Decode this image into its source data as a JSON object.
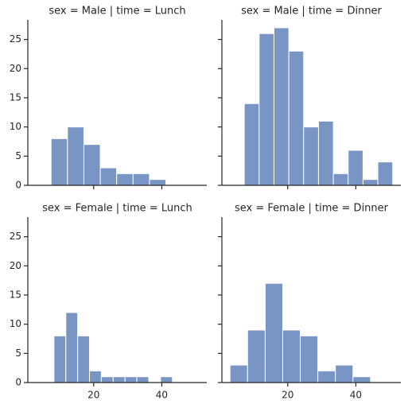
{
  "chart_data": [
    {
      "type": "histogram",
      "title": "sex = Male | time = Lunch",
      "color": "#4c72b0",
      "bins": [
        7.51,
        12.32,
        17.13,
        21.94,
        26.75,
        31.57,
        36.38,
        41.19
      ],
      "values": [
        8,
        10,
        7,
        3,
        2,
        2,
        1
      ],
      "xlim": [
        0.68,
        53.2
      ],
      "ylim": [
        0,
        28.35
      ],
      "xticks": [
        20,
        40
      ],
      "yticks": [
        0,
        5,
        10,
        15,
        20,
        25
      ]
    },
    {
      "type": "histogram",
      "title": "sex = Male | time = Dinner",
      "color": "#4c72b0",
      "bins": [
        7.25,
        11.61,
        15.96,
        20.32,
        24.67,
        29.03,
        33.39,
        37.74,
        42.1,
        46.45,
        50.81
      ],
      "values": [
        14,
        26,
        27,
        23,
        10,
        11,
        2,
        6,
        1,
        4
      ],
      "xlim": [
        0.68,
        53.2
      ],
      "ylim": [
        0,
        28.35
      ],
      "xticks": [
        20,
        40
      ],
      "yticks": [
        0,
        5,
        10,
        15,
        20,
        25
      ]
    },
    {
      "type": "histogram",
      "title": "sex = Female | time = Lunch",
      "color": "#4c72b0",
      "bins": [
        8.35,
        11.83,
        15.3,
        18.78,
        22.25,
        25.73,
        29.21,
        32.68,
        36.16,
        39.63,
        43.11
      ],
      "values": [
        8,
        12,
        8,
        2,
        1,
        1,
        1,
        1,
        0,
        1
      ],
      "xlim": [
        0.68,
        53.2
      ],
      "ylim": [
        0,
        28.35
      ],
      "xticks": [
        20,
        40
      ],
      "yticks": [
        0,
        5,
        10,
        15,
        20,
        25
      ]
    },
    {
      "type": "histogram",
      "title": "sex = Female | time = Dinner",
      "color": "#4c72b0",
      "bins": [
        3.07,
        8.22,
        13.38,
        18.53,
        23.68,
        28.84,
        33.99,
        39.15,
        44.3
      ],
      "values": [
        3,
        9,
        17,
        9,
        8,
        2,
        3,
        1
      ],
      "xlim": [
        0.68,
        53.2
      ],
      "ylim": [
        0,
        28.35
      ],
      "xticks": [
        20,
        40
      ],
      "yticks": [
        0,
        5,
        10,
        15,
        20,
        25
      ]
    }
  ]
}
